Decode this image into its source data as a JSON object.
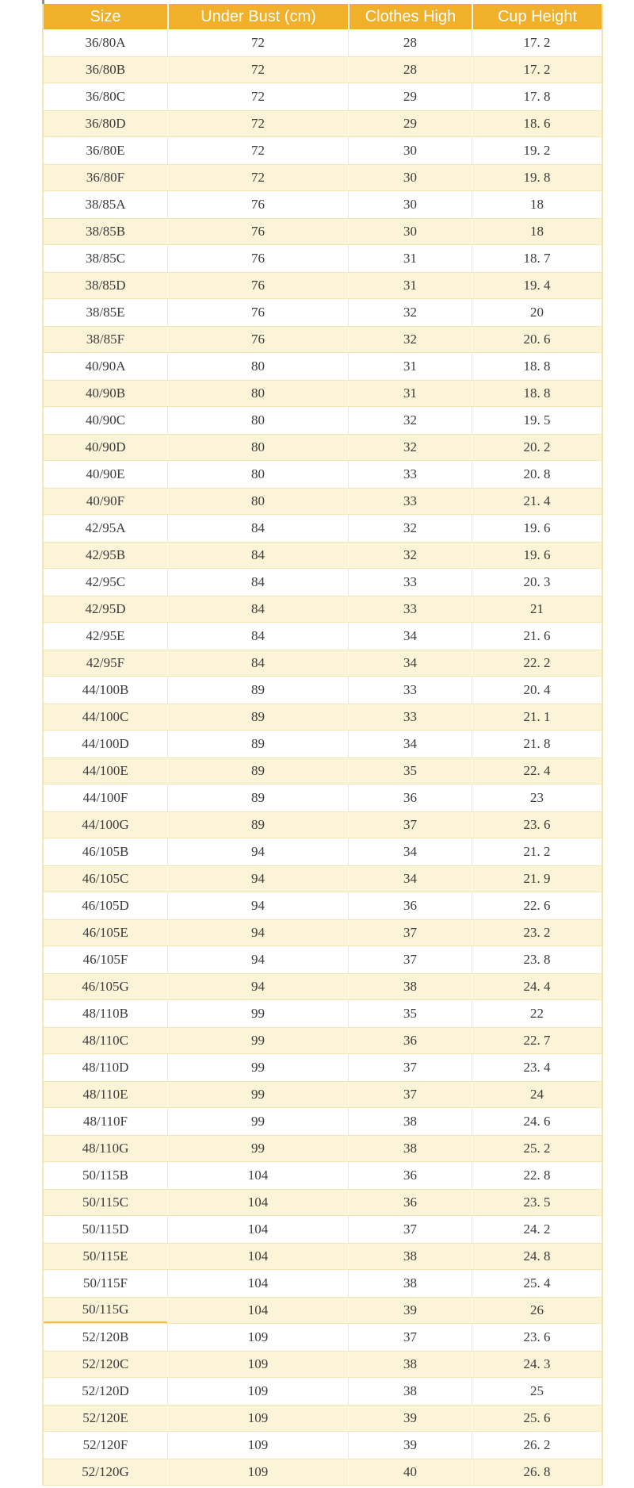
{
  "colors": {
    "header_bg": "#F0B02A",
    "header_text": "#FFFFFF",
    "row_bg": "#FFFFFF",
    "row_alt_bg": "#FCF4D8",
    "body_text": "#3B3B3B",
    "border": "#F5E5B0"
  },
  "chart_data": {
    "type": "table",
    "title": "",
    "columns": [
      "Size",
      "Under Bust (cm)",
      "Clothes High",
      "Cup Height"
    ],
    "rows": [
      [
        "36/80A",
        "72",
        "28",
        "17. 2"
      ],
      [
        "36/80B",
        "72",
        "28",
        "17. 2"
      ],
      [
        "36/80C",
        "72",
        "29",
        "17. 8"
      ],
      [
        "36/80D",
        "72",
        "29",
        "18. 6"
      ],
      [
        "36/80E",
        "72",
        "30",
        "19. 2"
      ],
      [
        "36/80F",
        "72",
        "30",
        "19. 8"
      ],
      [
        "38/85A",
        "76",
        "30",
        "18"
      ],
      [
        "38/85B",
        "76",
        "30",
        "18"
      ],
      [
        "38/85C",
        "76",
        "31",
        "18. 7"
      ],
      [
        "38/85D",
        "76",
        "31",
        "19. 4"
      ],
      [
        "38/85E",
        "76",
        "32",
        "20"
      ],
      [
        "38/85F",
        "76",
        "32",
        "20. 6"
      ],
      [
        "40/90A",
        "80",
        "31",
        "18. 8"
      ],
      [
        "40/90B",
        "80",
        "31",
        "18. 8"
      ],
      [
        "40/90C",
        "80",
        "32",
        "19. 5"
      ],
      [
        "40/90D",
        "80",
        "32",
        "20. 2"
      ],
      [
        "40/90E",
        "80",
        "33",
        "20. 8"
      ],
      [
        "40/90F",
        "80",
        "33",
        "21. 4"
      ],
      [
        "42/95A",
        "84",
        "32",
        "19. 6"
      ],
      [
        "42/95B",
        "84",
        "32",
        "19. 6"
      ],
      [
        "42/95C",
        "84",
        "33",
        "20. 3"
      ],
      [
        "42/95D",
        "84",
        "33",
        "21"
      ],
      [
        "42/95E",
        "84",
        "34",
        "21. 6"
      ],
      [
        "42/95F",
        "84",
        "34",
        "22. 2"
      ],
      [
        "44/100B",
        "89",
        "33",
        "20. 4"
      ],
      [
        "44/100C",
        "89",
        "33",
        "21. 1"
      ],
      [
        "44/100D",
        "89",
        "34",
        "21. 8"
      ],
      [
        "44/100E",
        "89",
        "35",
        "22. 4"
      ],
      [
        "44/100F",
        "89",
        "36",
        "23"
      ],
      [
        "44/100G",
        "89",
        "37",
        "23. 6"
      ],
      [
        "46/105B",
        "94",
        "34",
        "21. 2"
      ],
      [
        "46/105C",
        "94",
        "34",
        "21. 9"
      ],
      [
        "46/105D",
        "94",
        "36",
        "22. 6"
      ],
      [
        "46/105E",
        "94",
        "37",
        "23. 2"
      ],
      [
        "46/105F",
        "94",
        "37",
        "23. 8"
      ],
      [
        "46/105G",
        "94",
        "38",
        "24. 4"
      ],
      [
        "48/110B",
        "99",
        "35",
        "22"
      ],
      [
        "48/110C",
        "99",
        "36",
        "22. 7"
      ],
      [
        "48/110D",
        "99",
        "37",
        "23. 4"
      ],
      [
        "48/110E",
        "99",
        "37",
        "24"
      ],
      [
        "48/110F",
        "99",
        "38",
        "24. 6"
      ],
      [
        "48/110G",
        "99",
        "38",
        "25. 2"
      ],
      [
        "50/115B",
        "104",
        "36",
        "22. 8"
      ],
      [
        "50/115C",
        "104",
        "36",
        "23. 5"
      ],
      [
        "50/115D",
        "104",
        "37",
        "24. 2"
      ],
      [
        "50/115E",
        "104",
        "38",
        "24. 8"
      ],
      [
        "50/115F",
        "104",
        "38",
        "25. 4"
      ],
      [
        "50/115G",
        "104",
        "39",
        "26"
      ],
      [
        "52/120B",
        "109",
        "37",
        "23. 6"
      ],
      [
        "52/120C",
        "109",
        "38",
        "24. 3"
      ],
      [
        "52/120D",
        "109",
        "38",
        "25"
      ],
      [
        "52/120E",
        "109",
        "39",
        "25. 6"
      ],
      [
        "52/120F",
        "109",
        "39",
        "26. 2"
      ],
      [
        "52/120G",
        "109",
        "40",
        "26. 8"
      ]
    ]
  }
}
